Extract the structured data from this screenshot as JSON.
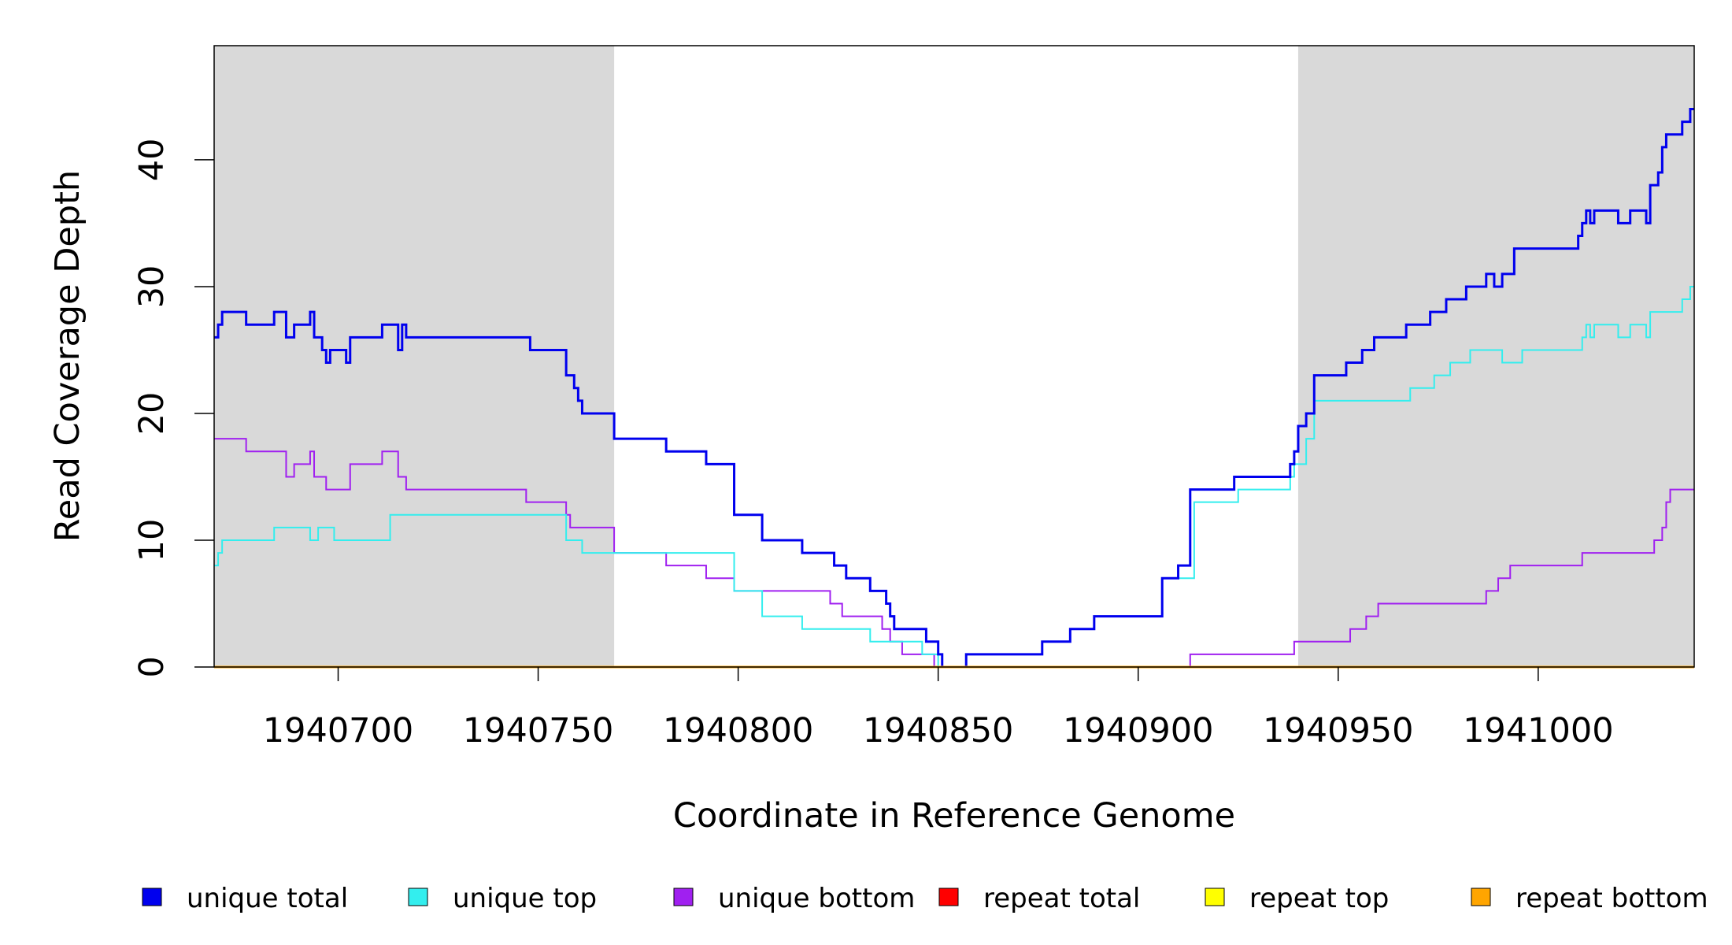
{
  "chart_data": {
    "type": "line",
    "title": "",
    "xlabel": "Coordinate in Reference Genome",
    "ylabel": "Read Coverage Depth",
    "xlim": [
      1940669,
      1941039
    ],
    "ylim": [
      0,
      49
    ],
    "x_ticks": [
      1940700,
      1940750,
      1940800,
      1940850,
      1940900,
      1940950,
      1941000
    ],
    "y_ticks": [
      0,
      10,
      20,
      30,
      40
    ],
    "grid": false,
    "legend_position": "bottom",
    "shaded_regions": [
      {
        "x": [
          1940669,
          1940769
        ],
        "color": "#d9d9d9"
      },
      {
        "x": [
          1940940,
          1941039
        ],
        "color": "#d9d9d9"
      }
    ],
    "series": [
      {
        "name": "unique total",
        "color": "#0000ee",
        "width": 3,
        "points": [
          [
            1940669,
            26
          ],
          [
            1940670,
            27
          ],
          [
            1940671,
            28
          ],
          [
            1940677,
            27
          ],
          [
            1940684,
            28
          ],
          [
            1940687,
            26
          ],
          [
            1940689,
            27
          ],
          [
            1940693,
            28
          ],
          [
            1940694,
            26
          ],
          [
            1940696,
            25
          ],
          [
            1940697,
            24
          ],
          [
            1940698,
            25
          ],
          [
            1940702,
            24
          ],
          [
            1940703,
            26
          ],
          [
            1940711,
            27
          ],
          [
            1940715,
            25
          ],
          [
            1940716,
            27
          ],
          [
            1940717,
            26
          ],
          [
            1940744,
            26
          ],
          [
            1940748,
            25
          ],
          [
            1940756,
            25
          ],
          [
            1940757,
            23
          ],
          [
            1940759,
            22
          ],
          [
            1940760,
            21
          ],
          [
            1940761,
            20
          ],
          [
            1940769,
            18
          ],
          [
            1940782,
            17
          ],
          [
            1940792,
            16
          ],
          [
            1940799,
            12
          ],
          [
            1940806,
            10
          ],
          [
            1940816,
            9
          ],
          [
            1940824,
            8
          ],
          [
            1940827,
            7
          ],
          [
            1940833,
            6
          ],
          [
            1940837,
            5
          ],
          [
            1940838,
            4
          ],
          [
            1940839,
            3
          ],
          [
            1940847,
            2
          ],
          [
            1940850,
            1
          ],
          [
            1940851,
            0
          ],
          [
            1940857,
            1
          ],
          [
            1940876,
            2
          ],
          [
            1940883,
            3
          ],
          [
            1940889,
            4
          ],
          [
            1940906,
            7
          ],
          [
            1940910,
            8
          ],
          [
            1940913,
            14
          ],
          [
            1940924,
            15
          ],
          [
            1940938,
            16
          ],
          [
            1940939,
            17
          ],
          [
            1940940,
            19
          ],
          [
            1940942,
            20
          ],
          [
            1940944,
            23
          ],
          [
            1940952,
            24
          ],
          [
            1940956,
            25
          ],
          [
            1940959,
            26
          ],
          [
            1940967,
            27
          ],
          [
            1940973,
            28
          ],
          [
            1940977,
            29
          ],
          [
            1940982,
            30
          ],
          [
            1940987,
            31
          ],
          [
            1940989,
            30
          ],
          [
            1940991,
            31
          ],
          [
            1940994,
            33
          ],
          [
            1941010,
            34
          ],
          [
            1941011,
            35
          ],
          [
            1941012,
            36
          ],
          [
            1941013,
            35
          ],
          [
            1941014,
            36
          ],
          [
            1941020,
            35
          ],
          [
            1941023,
            36
          ],
          [
            1941027,
            35
          ],
          [
            1941028,
            38
          ],
          [
            1941030,
            39
          ],
          [
            1941031,
            41
          ],
          [
            1941032,
            42
          ],
          [
            1941036,
            43
          ],
          [
            1941038,
            44
          ],
          [
            1941039,
            44
          ]
        ]
      },
      {
        "name": "unique top",
        "color": "#33eeee",
        "width": 2,
        "points": [
          [
            1940669,
            8
          ],
          [
            1940670,
            9
          ],
          [
            1940671,
            10
          ],
          [
            1940684,
            11
          ],
          [
            1940693,
            10
          ],
          [
            1940695,
            11
          ],
          [
            1940699,
            10
          ],
          [
            1940713,
            12
          ],
          [
            1940727,
            12
          ],
          [
            1940750,
            12
          ],
          [
            1940756,
            12
          ],
          [
            1940757,
            10
          ],
          [
            1940761,
            9
          ],
          [
            1940769,
            9
          ],
          [
            1940799,
            6
          ],
          [
            1940806,
            4
          ],
          [
            1940816,
            3
          ],
          [
            1940833,
            2
          ],
          [
            1940846,
            1
          ],
          [
            1940850,
            0
          ],
          [
            1940857,
            1
          ],
          [
            1940876,
            2
          ],
          [
            1940883,
            3
          ],
          [
            1940889,
            4
          ],
          [
            1940906,
            7
          ],
          [
            1940914,
            13
          ],
          [
            1940925,
            14
          ],
          [
            1940938,
            15
          ],
          [
            1940939,
            16
          ],
          [
            1940942,
            18
          ],
          [
            1940944,
            21
          ],
          [
            1940968,
            22
          ],
          [
            1940974,
            23
          ],
          [
            1940978,
            24
          ],
          [
            1940983,
            25
          ],
          [
            1940991,
            24
          ],
          [
            1940996,
            25
          ],
          [
            1941011,
            26
          ],
          [
            1941012,
            27
          ],
          [
            1941013,
            26
          ],
          [
            1941014,
            27
          ],
          [
            1941020,
            26
          ],
          [
            1941023,
            27
          ],
          [
            1941027,
            26
          ],
          [
            1941028,
            28
          ],
          [
            1941036,
            29
          ],
          [
            1941038,
            30
          ],
          [
            1941039,
            30
          ]
        ]
      },
      {
        "name": "unique bottom",
        "color": "#a020f0",
        "width": 2,
        "points": [
          [
            1940669,
            18
          ],
          [
            1940677,
            17
          ],
          [
            1940687,
            15
          ],
          [
            1940689,
            16
          ],
          [
            1940693,
            17
          ],
          [
            1940694,
            15
          ],
          [
            1940697,
            14
          ],
          [
            1940703,
            16
          ],
          [
            1940711,
            17
          ],
          [
            1940715,
            15
          ],
          [
            1940717,
            14
          ],
          [
            1940747,
            13
          ],
          [
            1940757,
            12
          ],
          [
            1940758,
            11
          ],
          [
            1940769,
            9
          ],
          [
            1940782,
            8
          ],
          [
            1940792,
            7
          ],
          [
            1940799,
            6
          ],
          [
            1940823,
            5
          ],
          [
            1940826,
            4
          ],
          [
            1940836,
            3
          ],
          [
            1940838,
            2
          ],
          [
            1940841,
            1
          ],
          [
            1940849,
            0
          ],
          [
            1940913,
            1
          ],
          [
            1940939,
            2
          ],
          [
            1940953,
            3
          ],
          [
            1940957,
            4
          ],
          [
            1940960,
            5
          ],
          [
            1940987,
            6
          ],
          [
            1940990,
            7
          ],
          [
            1940993,
            8
          ],
          [
            1941011,
            9
          ],
          [
            1941029,
            10
          ],
          [
            1941031,
            11
          ],
          [
            1941032,
            13
          ],
          [
            1941033,
            14
          ],
          [
            1941039,
            14
          ]
        ]
      },
      {
        "name": "repeat total",
        "color": "#ff0000",
        "width": 2,
        "points": [
          [
            1940669,
            0
          ],
          [
            1941039,
            0
          ]
        ]
      },
      {
        "name": "repeat top",
        "color": "#ffff00",
        "width": 2,
        "points": [
          [
            1940669,
            0
          ],
          [
            1941039,
            0
          ]
        ]
      },
      {
        "name": "repeat bottom",
        "color": "#ffa500",
        "width": 3,
        "points": [
          [
            1940669,
            0
          ],
          [
            1941039,
            0
          ]
        ]
      }
    ]
  }
}
